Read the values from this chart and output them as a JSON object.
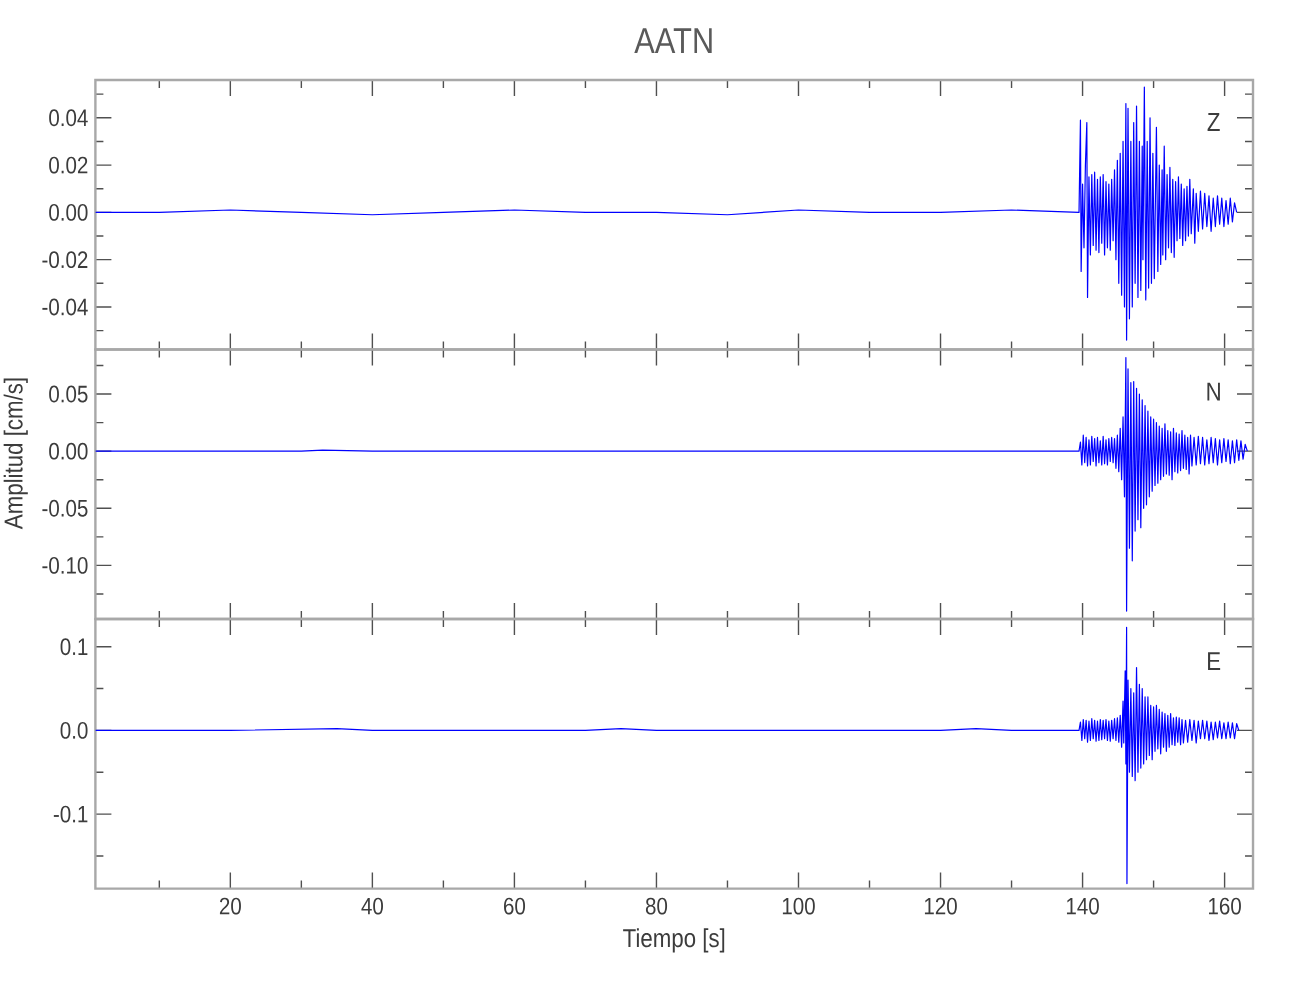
{
  "chart_data": [
    {
      "type": "line",
      "title": "AATN",
      "annotations": [
        "Z"
      ],
      "tick_labels": "y",
      "xlim": [
        1,
        164
      ],
      "ylim": [
        -0.058,
        0.056
      ],
      "xticks": [
        {
          "value": 10,
          "label": null
        },
        20,
        {
          "value": 30,
          "label": null
        },
        40,
        {
          "value": 50,
          "label": null
        },
        60,
        {
          "value": 70,
          "label": null
        },
        80,
        {
          "value": 90,
          "label": null
        },
        100,
        {
          "value": 110,
          "label": null
        },
        120,
        {
          "value": 130,
          "label": null
        },
        140,
        {
          "value": 150,
          "label": null
        },
        160
      ],
      "yticks": [
        {
          "value": -0.05,
          "label": null
        },
        -0.04,
        {
          "value": -0.03,
          "label": null
        },
        -0.02,
        {
          "value": -0.01,
          "label": null
        },
        {
          "value": 0,
          "label": "0.00"
        },
        {
          "value": 0.01,
          "label": null
        },
        0.02,
        {
          "value": 0.03,
          "label": null
        },
        0.04,
        {
          "value": 0.05,
          "label": null
        }
      ],
      "x": [
        1,
        10,
        20,
        30,
        40,
        50,
        60,
        70,
        80,
        90,
        100,
        110,
        120,
        130,
        139.5,
        139.7,
        139.8,
        140.0,
        140.2,
        140.4,
        140.6,
        140.7,
        140.9,
        141.1,
        141.3,
        141.5,
        141.7,
        141.9,
        142.1,
        142.3,
        142.5,
        142.7,
        142.9,
        143.1,
        143.3,
        143.5,
        143.7,
        143.9,
        144.1,
        144.3,
        144.5,
        144.7,
        144.9,
        145.1,
        145.3,
        145.5,
        145.7,
        145.9,
        146.1,
        146.2,
        146.4,
        146.6,
        146.8,
        147.0,
        147.2,
        147.4,
        147.6,
        147.8,
        148.0,
        148.2,
        148.4,
        148.5,
        148.7,
        148.9,
        149.1,
        149.3,
        149.5,
        149.7,
        149.9,
        150.1,
        150.4,
        150.6,
        150.8,
        151.0,
        151.2,
        151.3,
        151.5,
        151.7,
        151.9,
        152.1,
        152.3,
        152.5,
        152.7,
        152.9,
        153.1,
        153.3,
        153.5,
        153.7,
        153.9,
        154.1,
        154.3,
        154.5,
        154.7,
        154.9,
        155.1,
        155.3,
        155.6,
        155.8,
        156.0,
        156.3,
        156.6,
        156.9,
        157.2,
        157.5,
        157.8,
        158.1,
        158.4,
        158.7,
        159.0,
        159.3,
        159.6,
        159.9,
        160.2,
        160.5,
        160.8,
        161.1,
        161.4,
        161.7
      ],
      "series": [
        {
          "color": "#0000ff",
          "values": [
            0,
            0,
            0.001,
            0,
            -0.001,
            0,
            0.001,
            0,
            0,
            -0.001,
            0.001,
            0,
            0,
            0.001,
            0,
            0.039,
            -0.025,
            0.012,
            -0.015,
            0.02,
            0.038,
            -0.036,
            0.015,
            -0.018,
            0.016,
            -0.014,
            0.017,
            -0.016,
            0.014,
            -0.017,
            0.015,
            -0.013,
            0.016,
            -0.018,
            0.013,
            -0.015,
            0.012,
            -0.016,
            0.014,
            -0.012,
            0.018,
            -0.02,
            0.022,
            -0.03,
            0.025,
            -0.035,
            0.03,
            -0.04,
            0.046,
            -0.054,
            0.044,
            -0.045,
            0.03,
            -0.04,
            0.038,
            -0.03,
            0.045,
            -0.036,
            0.03,
            -0.033,
            0.028,
            -0.02,
            0.053,
            -0.037,
            0.03,
            -0.032,
            0.04,
            -0.03,
            0.025,
            -0.028,
            0.036,
            -0.025,
            0.02,
            -0.022,
            0.018,
            -0.018,
            0.028,
            -0.02,
            0.016,
            -0.015,
            0.019,
            -0.017,
            0.014,
            -0.019,
            0.013,
            -0.012,
            0.015,
            -0.011,
            0.012,
            -0.014,
            0.01,
            -0.012,
            0.011,
            -0.01,
            0.014,
            -0.009,
            0.01,
            -0.013,
            0.008,
            -0.008,
            0.009,
            -0.007,
            0.008,
            -0.006,
            0.007,
            -0.008,
            0.006,
            -0.006,
            0.007,
            -0.005,
            0.006,
            -0.006,
            0.005,
            -0.005,
            0.006,
            -0.004,
            0.004,
            0
          ]
        }
      ]
    },
    {
      "type": "line",
      "ylabel": "Amplitud [cm/s]",
      "annotations": [
        "N"
      ],
      "tick_labels": "y",
      "xlim": [
        1,
        164
      ],
      "ylim": [
        -0.147,
        0.089
      ],
      "xticks": [
        {
          "value": 10,
          "label": null
        },
        20,
        {
          "value": 30,
          "label": null
        },
        40,
        {
          "value": 50,
          "label": null
        },
        60,
        {
          "value": 70,
          "label": null
        },
        80,
        {
          "value": 90,
          "label": null
        },
        100,
        {
          "value": 110,
          "label": null
        },
        120,
        {
          "value": 130,
          "label": null
        },
        140,
        {
          "value": 150,
          "label": null
        },
        160
      ],
      "yticks": [
        {
          "value": -0.125,
          "label": null
        },
        {
          "value": -0.1,
          "label": "-0.10"
        },
        {
          "value": -0.075,
          "label": null
        },
        -0.05,
        {
          "value": -0.025,
          "label": null
        },
        {
          "value": 0,
          "label": "0.00"
        },
        {
          "value": 0.025,
          "label": null
        },
        0.05,
        {
          "value": 0.075,
          "label": null
        }
      ],
      "x": [
        1,
        10,
        20,
        30,
        33,
        40,
        50,
        60,
        70,
        80,
        90,
        100,
        110,
        120,
        130,
        139.5,
        139.7,
        139.9,
        140.1,
        140.3,
        140.5,
        140.7,
        140.9,
        141.1,
        141.3,
        141.5,
        141.7,
        141.9,
        142.1,
        142.3,
        142.5,
        142.7,
        142.9,
        143.1,
        143.3,
        143.5,
        143.7,
        143.9,
        144.1,
        144.3,
        144.5,
        144.7,
        144.9,
        145.1,
        145.3,
        145.5,
        145.7,
        145.9,
        146.1,
        146.2,
        146.4,
        146.6,
        146.8,
        147.0,
        147.2,
        147.4,
        147.6,
        147.8,
        148.0,
        148.2,
        148.4,
        148.6,
        148.8,
        149.0,
        149.2,
        149.4,
        149.6,
        149.8,
        150.0,
        150.2,
        150.4,
        150.6,
        150.8,
        151.0,
        151.2,
        151.4,
        151.6,
        151.8,
        152.0,
        152.2,
        152.4,
        152.6,
        152.8,
        153.0,
        153.2,
        153.4,
        153.6,
        153.8,
        154.0,
        154.2,
        154.4,
        154.6,
        154.8,
        155.0,
        155.2,
        155.4,
        155.7,
        156.0,
        156.3,
        156.6,
        156.9,
        157.2,
        157.5,
        157.8,
        158.1,
        158.4,
        158.7,
        159.0,
        159.3,
        159.6,
        159.9,
        160.2,
        160.5,
        160.8,
        161.1,
        161.4,
        161.7,
        162.0,
        162.3,
        162.6,
        162.9,
        163.2
      ],
      "series": [
        {
          "color": "#0000ff",
          "values": [
            0,
            0,
            0,
            0,
            0.001,
            0,
            0,
            0,
            0,
            0,
            0,
            0,
            0,
            0,
            0,
            0,
            0.008,
            -0.012,
            0.014,
            -0.01,
            0.012,
            -0.013,
            0.01,
            -0.012,
            0.013,
            -0.009,
            0.011,
            -0.013,
            0.012,
            -0.01,
            0.009,
            -0.012,
            0.013,
            -0.011,
            0.01,
            -0.012,
            0.011,
            -0.009,
            0.012,
            -0.01,
            0.011,
            -0.015,
            0.014,
            -0.018,
            0.02,
            -0.025,
            0.03,
            -0.04,
            0.082,
            -0.14,
            0.072,
            -0.085,
            0.06,
            -0.096,
            0.061,
            -0.07,
            0.055,
            -0.06,
            0.05,
            -0.067,
            0.045,
            -0.05,
            0.04,
            -0.047,
            0.035,
            -0.04,
            0.03,
            -0.035,
            0.028,
            -0.03,
            0.025,
            -0.028,
            0.022,
            -0.025,
            0.02,
            -0.022,
            0.024,
            -0.02,
            0.018,
            -0.021,
            0.017,
            -0.025,
            0.02,
            -0.018,
            0.016,
            -0.019,
            0.015,
            -0.017,
            0.018,
            -0.015,
            0.014,
            -0.016,
            0.012,
            -0.02,
            0.014,
            -0.013,
            0.012,
            -0.012,
            0.013,
            -0.011,
            0.012,
            -0.012,
            0.01,
            -0.011,
            0.012,
            -0.01,
            0.011,
            -0.012,
            0.01,
            -0.01,
            0.011,
            -0.009,
            0.01,
            -0.011,
            0.009,
            -0.01,
            0.01,
            -0.008,
            0.009,
            -0.007,
            0.006,
            0
          ]
        }
      ]
    },
    {
      "type": "line",
      "xlabel": "Tiempo [s]",
      "annotations": [
        "E"
      ],
      "xlim": [
        1,
        164
      ],
      "ylim": [
        -0.189,
        0.133
      ],
      "xticks": [
        {
          "value": 10,
          "label": null
        },
        20,
        {
          "value": 30,
          "label": null
        },
        40,
        {
          "value": 50,
          "label": null
        },
        60,
        {
          "value": 70,
          "label": null
        },
        80,
        {
          "value": 90,
          "label": null
        },
        100,
        {
          "value": 110,
          "label": null
        },
        120,
        {
          "value": 130,
          "label": null
        },
        140,
        {
          "value": 150,
          "label": null
        },
        160
      ],
      "yticks": [
        {
          "value": -0.15,
          "label": null
        },
        -0.1,
        {
          "value": -0.05,
          "label": null
        },
        {
          "value": 0,
          "label": "0.0"
        },
        {
          "value": 0.05,
          "label": null
        },
        0.1
      ],
      "x": [
        1,
        10,
        20,
        35,
        40,
        50,
        60,
        70,
        75,
        80,
        90,
        100,
        110,
        120,
        125,
        130,
        139.5,
        139.7,
        139.9,
        140.1,
        140.3,
        140.5,
        140.7,
        140.9,
        141.1,
        141.3,
        141.5,
        141.7,
        141.9,
        142.1,
        142.3,
        142.5,
        142.7,
        142.9,
        143.1,
        143.3,
        143.5,
        143.7,
        143.9,
        144.1,
        144.3,
        144.5,
        144.7,
        144.9,
        145.1,
        145.3,
        145.5,
        145.7,
        145.8,
        146.0,
        146.1,
        146.2,
        146.25,
        146.4,
        146.6,
        146.8,
        147.0,
        147.2,
        147.4,
        147.6,
        147.8,
        148.0,
        148.2,
        148.4,
        148.6,
        148.8,
        149.0,
        149.2,
        149.4,
        149.6,
        149.8,
        150.0,
        150.2,
        150.4,
        150.6,
        150.8,
        151.0,
        151.2,
        151.4,
        151.6,
        151.8,
        152.0,
        152.2,
        152.4,
        152.6,
        152.8,
        153.0,
        153.2,
        153.4,
        153.6,
        153.8,
        154.0,
        154.2,
        154.5,
        154.8,
        155.1,
        155.4,
        155.7,
        156.0,
        156.3,
        156.6,
        156.9,
        157.2,
        157.5,
        157.8,
        158.1,
        158.4,
        158.7,
        159.0,
        159.3,
        159.6,
        159.9,
        160.2,
        160.5,
        160.8,
        161.1,
        161.4,
        161.7,
        162.0
      ],
      "series": [
        {
          "color": "#0000ff",
          "values": [
            0,
            0,
            0,
            0.002,
            0,
            0,
            0,
            0,
            0.002,
            0,
            0,
            0,
            0,
            0,
            0.002,
            0,
            0,
            0.01,
            -0.012,
            0.013,
            -0.01,
            0.012,
            -0.014,
            0.011,
            -0.012,
            0.014,
            -0.01,
            0.012,
            -0.013,
            0.011,
            -0.012,
            0.013,
            -0.011,
            0.012,
            -0.01,
            0.013,
            -0.012,
            0.011,
            -0.013,
            0.012,
            -0.01,
            0.014,
            -0.012,
            0.015,
            -0.014,
            0.018,
            -0.02,
            0.035,
            -0.015,
            0.071,
            -0.04,
            0.123,
            -0.183,
            0.06,
            -0.05,
            0.05,
            -0.055,
            0.045,
            -0.06,
            0.075,
            -0.05,
            0.055,
            -0.045,
            0.05,
            -0.04,
            0.04,
            -0.035,
            0.04,
            -0.03,
            0.03,
            -0.035,
            0.028,
            -0.025,
            0.03,
            -0.022,
            0.025,
            -0.028,
            0.022,
            -0.02,
            0.02,
            -0.025,
            0.018,
            -0.02,
            0.02,
            -0.017,
            0.015,
            -0.018,
            0.016,
            -0.014,
            0.015,
            -0.017,
            0.013,
            -0.015,
            0.012,
            -0.014,
            0.013,
            -0.012,
            0.012,
            -0.015,
            0.011,
            -0.01,
            0.012,
            -0.01,
            0.011,
            -0.012,
            0.01,
            -0.011,
            0.01,
            -0.009,
            0.011,
            -0.01,
            0.009,
            -0.01,
            0.01,
            -0.009,
            0.009,
            -0.01,
            0.008,
            0
          ]
        }
      ]
    }
  ]
}
